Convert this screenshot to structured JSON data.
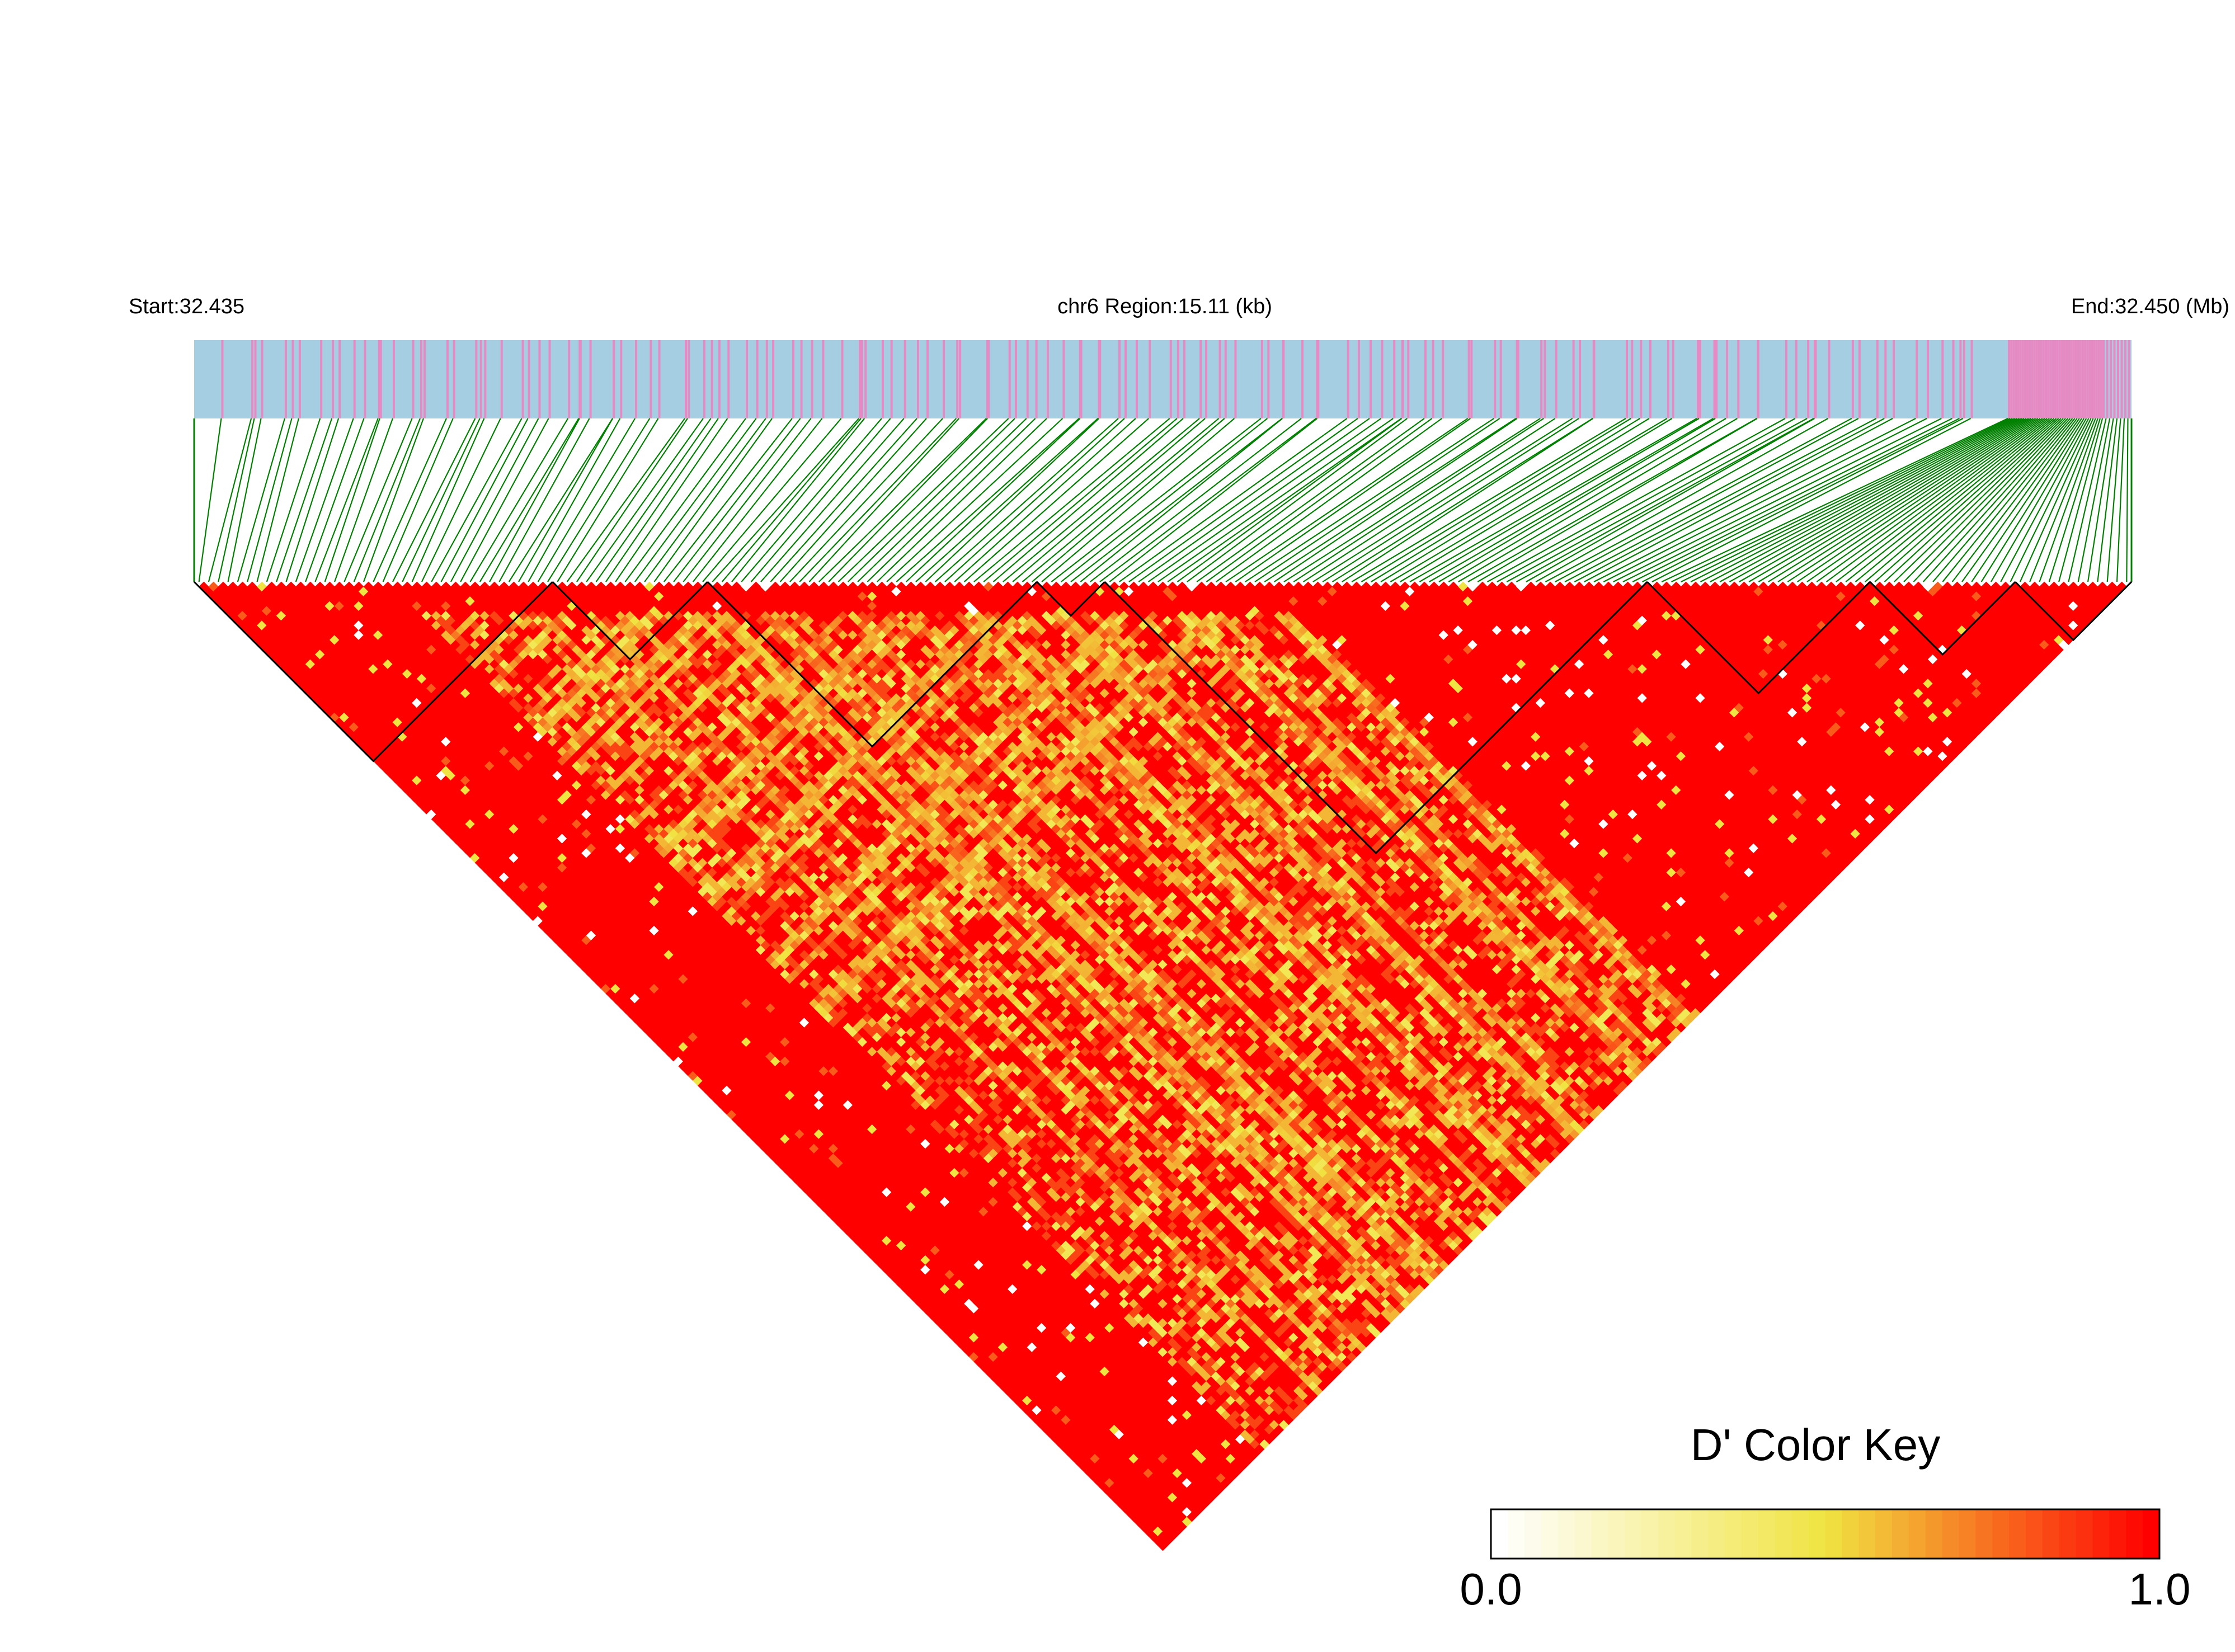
{
  "header": {
    "start_label": "Start:32.435",
    "region_label": "chr6 Region:15.11 (kb)",
    "end_label": "End:32.450 (Mb)"
  },
  "legend": {
    "title": "D' Color Key",
    "min_label": "0.0",
    "max_label": "1.0"
  },
  "colors": {
    "track_background": "#a6cee3",
    "snp_tick": "#e78ac3",
    "connector_line": "#008000",
    "ld_high": "#ff0000",
    "ld_mid": "#f0e442",
    "ld_low": "#ffffff",
    "block_outline": "#000000"
  },
  "chart_data": {
    "type": "heatmap",
    "metric": "D'",
    "chromosome": "chr6",
    "region_kb": 15.11,
    "start_mb": 32.435,
    "end_mb": 32.45,
    "color_scale": {
      "min": 0.0,
      "max": 1.0,
      "low": "#ffffff",
      "mid": "#f0e442",
      "high": "#ff0000"
    },
    "haplotype_blocks": [
      {
        "from_snp_fraction": 0.0,
        "to_snp_fraction": 0.185
      },
      {
        "from_snp_fraction": 0.185,
        "to_snp_fraction": 0.265
      },
      {
        "from_snp_fraction": 0.265,
        "to_snp_fraction": 0.435
      },
      {
        "from_snp_fraction": 0.435,
        "to_snp_fraction": 0.47
      },
      {
        "from_snp_fraction": 0.47,
        "to_snp_fraction": 0.75
      },
      {
        "from_snp_fraction": 0.75,
        "to_snp_fraction": 0.865
      },
      {
        "from_snp_fraction": 0.865,
        "to_snp_fraction": 0.94
      },
      {
        "from_snp_fraction": 0.94,
        "to_snp_fraction": 1.0
      }
    ],
    "low_ld_region_snp_fraction": [
      0.1,
      0.55
    ]
  }
}
